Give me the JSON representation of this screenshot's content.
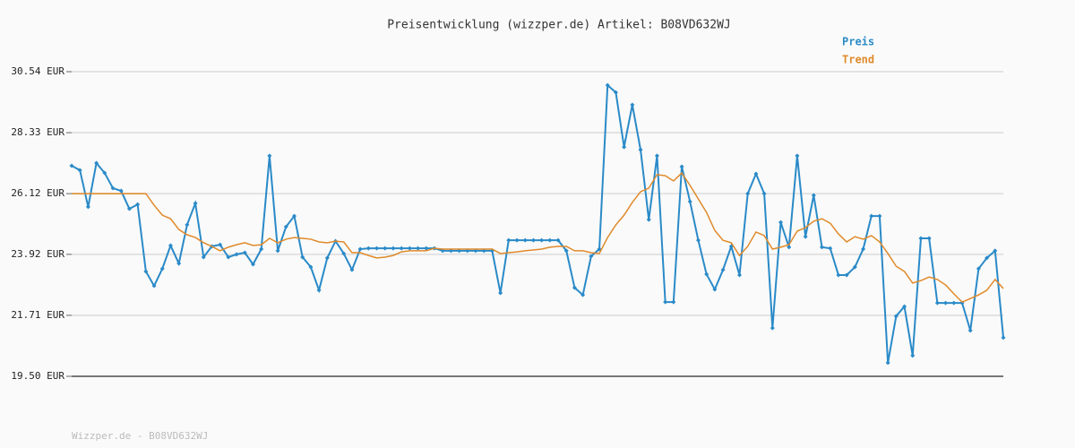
{
  "chart_data": {
    "type": "line",
    "title": "Preisentwicklung (wizzper.de) Artikel: B08VD632WJ",
    "footer": "Wizzper.de - B08VD632WJ",
    "ylim": [
      19.5,
      30.54
    ],
    "yticks": [
      {
        "value": 19.5,
        "label": "19.50 EUR"
      },
      {
        "value": 21.71,
        "label": "21.71 EUR"
      },
      {
        "value": 23.92,
        "label": "23.92 EUR"
      },
      {
        "value": 26.12,
        "label": "26.12 EUR"
      },
      {
        "value": 28.33,
        "label": "28.33 EUR"
      },
      {
        "value": 30.54,
        "label": "30.54 EUR"
      }
    ],
    "grid": true,
    "legend": "top-right",
    "series": [
      {
        "name": "Preis",
        "color": "#2a8ac8",
        "markers": true,
        "values": [
          27.13,
          26.97,
          25.64,
          27.23,
          26.87,
          26.32,
          26.22,
          25.57,
          25.73,
          23.3,
          22.78,
          23.4,
          24.24,
          23.59,
          24.99,
          25.77,
          23.82,
          24.21,
          24.27,
          23.82,
          23.92,
          23.98,
          23.56,
          24.11,
          27.49,
          24.05,
          24.92,
          25.31,
          23.82,
          23.46,
          22.62,
          23.79,
          24.4,
          23.95,
          23.36,
          24.11,
          24.14,
          24.14,
          24.14,
          24.14,
          24.14,
          24.14,
          24.14,
          24.14,
          24.14,
          24.05,
          24.05,
          24.05,
          24.05,
          24.05,
          24.05,
          24.05,
          22.52,
          24.43,
          24.43,
          24.43,
          24.43,
          24.43,
          24.43,
          24.43,
          24.05,
          22.71,
          22.45,
          23.85,
          24.11,
          30.05,
          29.79,
          27.81,
          29.34,
          27.71,
          25.18,
          27.49,
          22.19,
          22.19,
          27.1,
          25.83,
          24.43,
          23.2,
          22.65,
          23.36,
          24.21,
          23.17,
          26.12,
          26.84,
          26.12,
          21.25,
          25.08,
          24.18,
          27.49,
          24.56,
          26.06,
          24.18,
          24.14,
          23.17,
          23.17,
          23.46,
          24.11,
          25.31,
          25.31,
          19.99,
          21.68,
          22.03,
          20.25,
          24.5,
          24.5,
          22.16,
          22.16,
          22.16,
          22.16,
          21.16,
          23.4,
          23.79,
          24.05,
          20.9
        ]
      },
      {
        "name": "Trend",
        "color": "#e08a2a",
        "markers": false,
        "values": [
          26.12,
          26.12,
          26.12,
          26.12,
          26.12,
          26.12,
          26.12,
          26.12,
          26.12,
          26.12,
          25.7,
          25.34,
          25.21,
          24.82,
          24.63,
          24.53,
          24.34,
          24.21,
          24.05,
          24.18,
          24.27,
          24.34,
          24.24,
          24.27,
          24.5,
          24.34,
          24.47,
          24.53,
          24.5,
          24.47,
          24.37,
          24.34,
          24.4,
          24.37,
          23.98,
          23.98,
          23.88,
          23.79,
          23.82,
          23.88,
          24.01,
          24.05,
          24.05,
          24.05,
          24.14,
          24.11,
          24.11,
          24.11,
          24.11,
          24.11,
          24.11,
          24.11,
          23.95,
          23.98,
          24.01,
          24.05,
          24.08,
          24.11,
          24.18,
          24.21,
          24.21,
          24.05,
          24.05,
          23.98,
          23.95,
          24.53,
          24.99,
          25.34,
          25.8,
          26.19,
          26.32,
          26.81,
          26.77,
          26.58,
          26.87,
          26.42,
          25.93,
          25.44,
          24.79,
          24.43,
          24.34,
          23.88,
          24.21,
          24.73,
          24.6,
          24.11,
          24.18,
          24.27,
          24.76,
          24.89,
          25.12,
          25.21,
          25.05,
          24.66,
          24.37,
          24.56,
          24.47,
          24.6,
          24.37,
          23.95,
          23.49,
          23.3,
          22.88,
          22.97,
          23.1,
          23.01,
          22.81,
          22.49,
          22.19,
          22.32,
          22.45,
          22.62,
          23.01,
          22.68
        ]
      }
    ]
  }
}
